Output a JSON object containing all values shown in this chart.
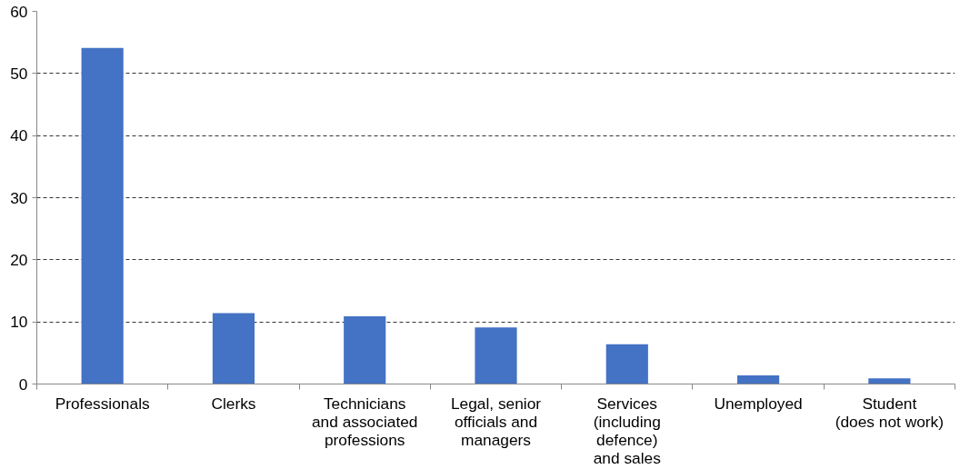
{
  "chart_data": {
    "type": "bar",
    "categories": [
      "Professionals",
      "Clerks",
      "Technicians\nand associated\nprofessions",
      "Legal, senior\nofficials and\nmanagers",
      "Services\n(including\ndefence)\nand sales",
      "Unemployed",
      "Student\n(does not work)"
    ],
    "values": [
      54.1,
      11.4,
      10.9,
      9.1,
      6.4,
      1.4,
      0.9
    ],
    "color": "#4472c4",
    "ylim": [
      0,
      60
    ],
    "yticks": [
      0,
      10,
      20,
      30,
      40,
      50,
      60
    ],
    "grid": "y"
  }
}
